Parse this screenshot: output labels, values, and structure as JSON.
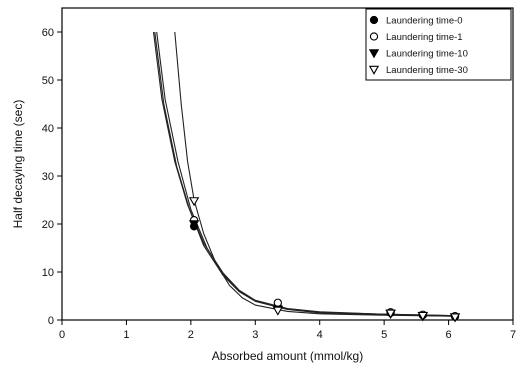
{
  "chart_data": {
    "type": "scatter",
    "xlabel": "Absorbed amount (mmol/kg)",
    "ylabel": "Half decaying time (sec)",
    "xlim": [
      0,
      7
    ],
    "ylim": [
      0,
      65
    ],
    "xticks": [
      0,
      1,
      2,
      3,
      4,
      5,
      6,
      7
    ],
    "yticks": [
      0,
      10,
      20,
      30,
      40,
      50,
      60
    ],
    "legend_position": "top-right",
    "series": [
      {
        "name": "Laundering time-0",
        "marker": "filled-circle",
        "points": [
          [
            2.05,
            19.5
          ],
          [
            3.35,
            2.8
          ],
          [
            5.1,
            1.5
          ],
          [
            5.6,
            1.0
          ],
          [
            6.1,
            0.7
          ]
        ],
        "fit": [
          [
            1.47,
            60
          ],
          [
            1.6,
            46
          ],
          [
            1.8,
            33
          ],
          [
            2.0,
            23
          ],
          [
            2.25,
            15
          ],
          [
            2.5,
            9.5
          ],
          [
            2.75,
            6.0
          ],
          [
            3.0,
            4.0
          ],
          [
            3.5,
            2.3
          ],
          [
            4.0,
            1.6
          ],
          [
            5.0,
            1.2
          ],
          [
            6.1,
            0.9
          ]
        ]
      },
      {
        "name": "Laundering time-1",
        "marker": "open-circle",
        "points": [
          [
            2.05,
            20.8
          ],
          [
            3.35,
            3.6
          ],
          [
            5.1,
            1.6
          ],
          [
            5.6,
            1.1
          ],
          [
            6.1,
            0.8
          ]
        ],
        "fit": [
          [
            1.42,
            60
          ],
          [
            1.55,
            46
          ],
          [
            1.75,
            33
          ],
          [
            1.95,
            24
          ],
          [
            2.2,
            16
          ],
          [
            2.5,
            9.8
          ],
          [
            2.75,
            6.2
          ],
          [
            3.0,
            4.1
          ],
          [
            3.5,
            2.4
          ],
          [
            4.0,
            1.7
          ],
          [
            5.0,
            1.2
          ],
          [
            6.1,
            0.9
          ]
        ]
      },
      {
        "name": "Laundering time-10",
        "marker": "filled-triangle-down",
        "points": [
          [
            2.05,
            20.0
          ],
          [
            3.35,
            2.2
          ],
          [
            5.1,
            1.3
          ],
          [
            5.6,
            0.8
          ],
          [
            6.1,
            0.6
          ]
        ],
        "fit": [
          [
            1.44,
            60
          ],
          [
            1.58,
            45
          ],
          [
            1.78,
            32
          ],
          [
            1.98,
            23
          ],
          [
            2.2,
            15.5
          ],
          [
            2.5,
            9.3
          ],
          [
            2.75,
            5.9
          ],
          [
            3.0,
            3.9
          ],
          [
            3.5,
            2.2
          ],
          [
            4.0,
            1.5
          ],
          [
            5.0,
            1.1
          ],
          [
            6.1,
            0.8
          ]
        ]
      },
      {
        "name": "Laundering time-30",
        "marker": "open-triangle-down",
        "points": [
          [
            2.05,
            24.8
          ],
          [
            3.35,
            2.0
          ],
          [
            5.1,
            1.4
          ],
          [
            5.6,
            0.9
          ],
          [
            6.1,
            0.6
          ]
        ],
        "fit": [
          [
            1.75,
            60
          ],
          [
            1.85,
            45
          ],
          [
            1.95,
            33
          ],
          [
            2.05,
            25
          ],
          [
            2.2,
            18
          ],
          [
            2.4,
            11.5
          ],
          [
            2.6,
            7.2
          ],
          [
            2.8,
            4.6
          ],
          [
            3.0,
            3.1
          ],
          [
            3.5,
            1.8
          ],
          [
            4.0,
            1.3
          ],
          [
            5.0,
            1.0
          ],
          [
            6.1,
            0.8
          ]
        ]
      }
    ]
  }
}
